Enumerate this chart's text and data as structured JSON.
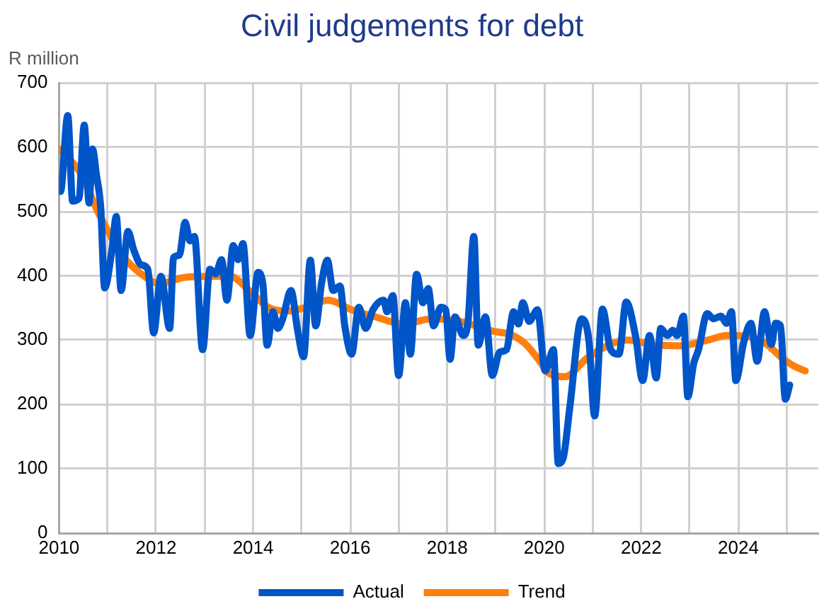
{
  "chart_data": {
    "type": "line",
    "title": "Civil judgements for debt",
    "ylabel": "R million",
    "xlim": [
      2010,
      2025.65
    ],
    "ylim": [
      0,
      700
    ],
    "xticks": [
      2010,
      {
        "value": 2011,
        "label": null
      },
      2012,
      {
        "value": 2013,
        "label": null
      },
      2014,
      {
        "value": 2015,
        "label": null
      },
      2016,
      {
        "value": 2017,
        "label": null
      },
      2018,
      {
        "value": 2019,
        "label": null
      },
      2020,
      {
        "value": 2021,
        "label": null
      },
      2022,
      {
        "value": 2023,
        "label": null
      },
      2024,
      {
        "value": 2025,
        "label": null
      }
    ],
    "yticks": [
      0,
      100,
      200,
      300,
      400,
      500,
      600,
      700
    ],
    "grid": true,
    "legend": "bottom",
    "marker": "none",
    "line_style": "solid",
    "series": [
      {
        "name": "Actual",
        "color": "#0055c8",
        "x": [
          2010.0,
          2010.03,
          2010.18,
          2010.28,
          2010.41,
          2010.52,
          2010.62,
          2010.69,
          2010.77,
          2010.86,
          2010.94,
          2011.09,
          2011.18,
          2011.28,
          2011.42,
          2011.54,
          2011.69,
          2011.83,
          2011.95,
          2012.1,
          2012.28,
          2012.36,
          2012.48,
          2012.6,
          2012.7,
          2012.79,
          2012.96,
          2013.11,
          2013.23,
          2013.35,
          2013.46,
          2013.59,
          2013.69,
          2013.79,
          2013.94,
          2014.1,
          2014.2,
          2014.29,
          2014.41,
          2014.51,
          2014.61,
          2014.78,
          2014.92,
          2015.04,
          2015.18,
          2015.29,
          2015.41,
          2015.53,
          2015.65,
          2015.79,
          2015.89,
          2016.03,
          2016.18,
          2016.32,
          2016.47,
          2016.69,
          2016.76,
          2016.88,
          2017.0,
          2017.14,
          2017.24,
          2017.37,
          2017.5,
          2017.61,
          2017.72,
          2017.87,
          2017.97,
          2018.06,
          2018.16,
          2018.33,
          2018.43,
          2018.55,
          2018.64,
          2018.79,
          2018.93,
          2019.08,
          2019.22,
          2019.37,
          2019.47,
          2019.56,
          2019.69,
          2019.86,
          2020.02,
          2020.19,
          2020.29,
          2020.39,
          2020.53,
          2020.77,
          2020.92,
          2021.04,
          2021.2,
          2021.37,
          2021.54,
          2021.69,
          2021.88,
          2022.03,
          2022.17,
          2022.31,
          2022.4,
          2022.54,
          2022.65,
          2022.74,
          2022.87,
          2022.96,
          2023.08,
          2023.18,
          2023.36,
          2023.49,
          2023.64,
          2023.76,
          2023.86,
          2023.95,
          2024.11,
          2024.26,
          2024.39,
          2024.54,
          2024.68,
          2024.77,
          2024.87,
          2024.97,
          2025.06
        ],
        "values": [
          535,
          531,
          649,
          516,
          520,
          634,
          513,
          597,
          557,
          505,
          381,
          440,
          492,
          377,
          469,
          440,
          417,
          410,
          311,
          399,
          318,
          428,
          432,
          483,
          454,
          461,
          285,
          410,
          403,
          425,
          362,
          447,
          425,
          450,
          307,
          405,
          388,
          292,
          344,
          318,
          333,
          377,
          314,
          274,
          424,
          322,
          388,
          424,
          377,
          384,
          322,
          278,
          351,
          318,
          347,
          362,
          344,
          369,
          245,
          358,
          278,
          402,
          358,
          380,
          322,
          351,
          347,
          270,
          336,
          307,
          329,
          461,
          292,
          336,
          245,
          281,
          285,
          344,
          325,
          358,
          329,
          347,
          252,
          285,
          108,
          116,
          197,
          333,
          300,
          182,
          348,
          285,
          278,
          359,
          307,
          237,
          307,
          241,
          318,
          307,
          315,
          307,
          337,
          212,
          263,
          285,
          341,
          333,
          337,
          326,
          344,
          237,
          296,
          326,
          267,
          344,
          293,
          326,
          322,
          208,
          230
        ]
      },
      {
        "name": "Trend",
        "color": "#ff7f0e",
        "x": [
          2010.0,
          2010.43,
          2010.81,
          2011.3,
          2011.69,
          2012.08,
          2012.56,
          2013.05,
          2013.53,
          2013.92,
          2014.31,
          2014.7,
          2015.05,
          2015.55,
          2016.03,
          2016.52,
          2017.1,
          2017.68,
          2018.26,
          2018.93,
          2019.32,
          2019.61,
          2019.9,
          2020.1,
          2020.43,
          2020.87,
          2021.35,
          2021.74,
          2022.22,
          2022.8,
          2023.38,
          2023.76,
          2024.15,
          2024.54,
          2024.92,
          2025.16,
          2025.38
        ],
        "values": [
          597,
          561,
          498,
          432,
          403,
          388,
          397,
          399,
          399,
          377,
          351,
          345,
          350,
          362,
          347,
          336,
          325,
          333,
          329,
          314,
          308,
          294,
          268,
          248,
          243,
          271,
          293,
          300,
          293,
          291,
          300,
          307,
          306,
          296,
          271,
          259,
          252
        ]
      }
    ]
  }
}
